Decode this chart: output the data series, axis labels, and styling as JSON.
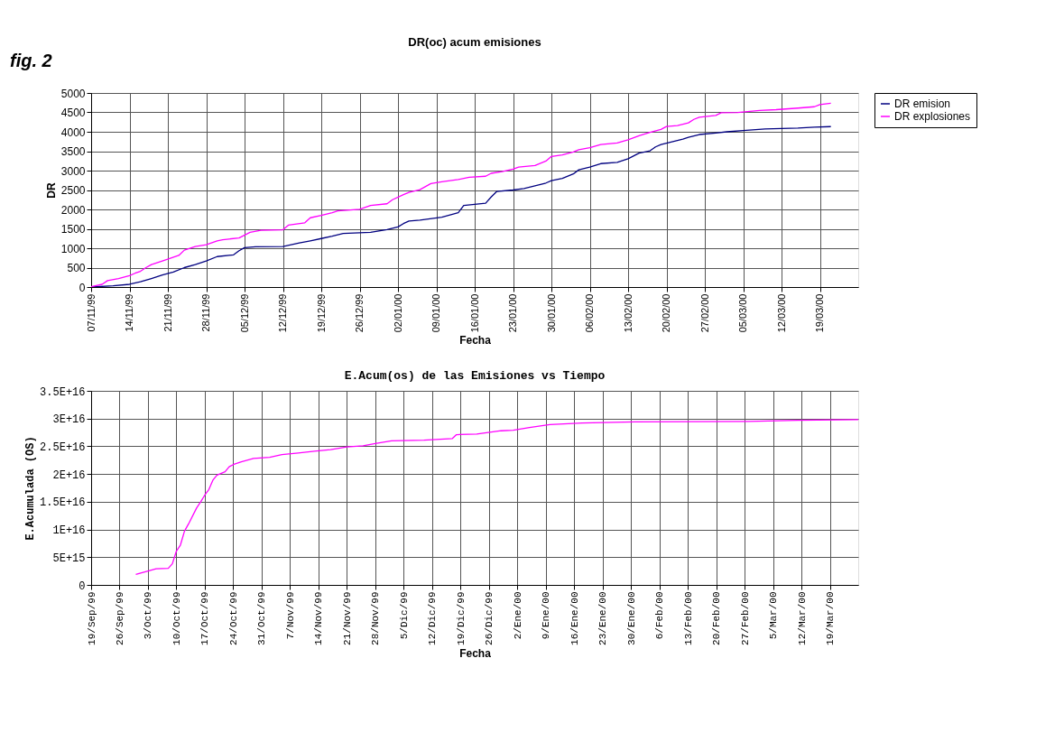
{
  "chart_data": [
    {
      "type": "line",
      "title": "DR(oc) acum emisiones",
      "xlabel": "Fecha",
      "ylabel": "DR",
      "annotations": [
        "fig. 2"
      ],
      "legend": "right",
      "grid": true,
      "xlim": [
        "1999-11-07",
        "2000-03-26"
      ],
      "xticks": [
        {
          "value": "1999-11-07",
          "label": "07/11/99"
        },
        {
          "value": "1999-11-14",
          "label": "14/11/99"
        },
        {
          "value": "1999-11-21",
          "label": "21/11/99"
        },
        {
          "value": "1999-11-28",
          "label": "28/11/99"
        },
        {
          "value": "1999-12-05",
          "label": "05/12/99"
        },
        {
          "value": "1999-12-12",
          "label": "12/12/99"
        },
        {
          "value": "1999-12-19",
          "label": "19/12/99"
        },
        {
          "value": "1999-12-26",
          "label": "26/12/99"
        },
        {
          "value": "2000-01-02",
          "label": "02/01/00"
        },
        {
          "value": "2000-01-09",
          "label": "09/01/00"
        },
        {
          "value": "2000-01-16",
          "label": "16/01/00"
        },
        {
          "value": "2000-01-23",
          "label": "23/01/00"
        },
        {
          "value": "2000-01-30",
          "label": "30/01/00"
        },
        {
          "value": "2000-02-06",
          "label": "06/02/00"
        },
        {
          "value": "2000-02-13",
          "label": "13/02/00"
        },
        {
          "value": "2000-02-20",
          "label": "20/02/00"
        },
        {
          "value": "2000-02-27",
          "label": "27/02/00"
        },
        {
          "value": "2000-03-05",
          "label": "05/03/00"
        },
        {
          "value": "2000-03-12",
          "label": "12/03/00"
        },
        {
          "value": "2000-03-19",
          "label": "19/03/00"
        }
      ],
      "ylim": [
        0,
        5000
      ],
      "yticks": [
        0,
        500,
        1000,
        1500,
        2000,
        2500,
        3000,
        3500,
        4000,
        4500,
        5000
      ],
      "series": [
        {
          "name": "DR emision",
          "color": "#000080",
          "x": [
            "1999-11-07",
            "1999-11-11",
            "1999-11-14",
            "1999-11-16",
            "1999-11-18",
            "1999-11-20",
            "1999-11-22",
            "1999-11-24",
            "1999-11-26",
            "1999-11-28",
            "1999-11-30",
            "1999-12-03",
            "1999-12-04",
            "1999-12-05",
            "1999-12-07",
            "1999-12-12",
            "1999-12-15",
            "1999-12-17",
            "1999-12-19",
            "1999-12-21",
            "1999-12-23",
            "1999-12-28",
            "1999-12-31",
            "2000-01-02",
            "2000-01-03",
            "2000-01-04",
            "2000-01-06",
            "2000-01-10",
            "2000-01-13",
            "2000-01-14",
            "2000-01-18",
            "2000-01-19",
            "2000-01-20",
            "2000-01-23",
            "2000-01-25",
            "2000-01-27",
            "2000-01-29",
            "2000-01-30",
            "2000-02-01",
            "2000-02-03",
            "2000-02-04",
            "2000-02-06",
            "2000-02-08",
            "2000-02-11",
            "2000-02-13",
            "2000-02-15",
            "2000-02-17",
            "2000-02-18",
            "2000-02-19",
            "2000-02-21",
            "2000-02-23",
            "2000-02-24",
            "2000-02-26",
            "2000-02-29",
            "2000-03-02",
            "2000-03-05",
            "2000-03-09",
            "2000-03-15",
            "2000-03-18",
            "2000-03-21"
          ],
          "values": [
            0,
            30,
            70,
            135,
            220,
            310,
            385,
            500,
            580,
            670,
            785,
            830,
            935,
            1015,
            1040,
            1045,
            1135,
            1190,
            1250,
            1310,
            1380,
            1410,
            1480,
            1550,
            1635,
            1700,
            1725,
            1800,
            1915,
            2100,
            2160,
            2320,
            2460,
            2500,
            2540,
            2610,
            2680,
            2740,
            2800,
            2915,
            3020,
            3090,
            3180,
            3210,
            3305,
            3450,
            3510,
            3610,
            3670,
            3740,
            3810,
            3855,
            3930,
            3970,
            4000,
            4030,
            4075,
            4095,
            4120,
            4134
          ]
        },
        {
          "name": "DR explosiones",
          "color": "#ff00ff",
          "x": [
            "1999-11-07",
            "1999-11-09",
            "1999-11-10",
            "1999-11-12",
            "1999-11-14",
            "1999-11-15",
            "1999-11-16",
            "1999-11-17",
            "1999-11-18",
            "1999-11-20",
            "1999-11-23",
            "1999-11-24",
            "1999-11-26",
            "1999-11-28",
            "1999-11-30",
            "1999-12-01",
            "1999-12-04",
            "1999-12-06",
            "1999-12-08",
            "1999-12-12",
            "1999-12-13",
            "1999-12-16",
            "1999-12-17",
            "1999-12-19",
            "1999-12-21",
            "1999-12-22",
            "1999-12-26",
            "1999-12-28",
            "1999-12-31",
            "2000-01-01",
            "2000-01-03",
            "2000-01-04",
            "2000-01-06",
            "2000-01-08",
            "2000-01-10",
            "2000-01-13",
            "2000-01-15",
            "2000-01-18",
            "2000-01-19",
            "2000-01-21",
            "2000-01-23",
            "2000-01-24",
            "2000-01-27",
            "2000-01-29",
            "2000-01-30",
            "2000-02-01",
            "2000-02-03",
            "2000-02-04",
            "2000-02-06",
            "2000-02-08",
            "2000-02-11",
            "2000-02-13",
            "2000-02-15",
            "2000-02-17",
            "2000-02-19",
            "2000-02-20",
            "2000-02-22",
            "2000-02-24",
            "2000-02-25",
            "2000-02-26",
            "2000-02-29",
            "2000-03-01",
            "2000-03-04",
            "2000-03-08",
            "2000-03-11",
            "2000-03-15",
            "2000-03-18",
            "2000-03-19",
            "2000-03-21"
          ],
          "values": [
            10,
            70,
            165,
            220,
            295,
            355,
            405,
            500,
            580,
            670,
            815,
            950,
            1045,
            1090,
            1190,
            1220,
            1265,
            1410,
            1460,
            1475,
            1595,
            1655,
            1785,
            1845,
            1915,
            1960,
            2005,
            2100,
            2145,
            2250,
            2380,
            2440,
            2510,
            2665,
            2710,
            2770,
            2830,
            2855,
            2930,
            2975,
            3040,
            3090,
            3130,
            3245,
            3365,
            3405,
            3480,
            3540,
            3590,
            3670,
            3710,
            3795,
            3900,
            3985,
            4060,
            4135,
            4160,
            4230,
            4320,
            4375,
            4420,
            4490,
            4495,
            4550,
            4570,
            4610,
            4645,
            4700,
            4735
          ]
        }
      ]
    },
    {
      "type": "line",
      "title": "E.Acum(os) de las Emisiones vs Tiempo",
      "xlabel": "Fecha",
      "ylabel": "E.Acumulada (OS)",
      "legend": false,
      "grid": true,
      "xlim": [
        "1999-09-19",
        "2000-03-26"
      ],
      "xticks": [
        {
          "value": "1999-09-19",
          "label": "19/Sep/99"
        },
        {
          "value": "1999-09-26",
          "label": "26/Sep/99"
        },
        {
          "value": "1999-10-03",
          "label": "3/Oct/99"
        },
        {
          "value": "1999-10-10",
          "label": "10/Oct/99"
        },
        {
          "value": "1999-10-17",
          "label": "17/Oct/99"
        },
        {
          "value": "1999-10-24",
          "label": "24/Oct/99"
        },
        {
          "value": "1999-10-31",
          "label": "31/Oct/99"
        },
        {
          "value": "1999-11-07",
          "label": "7/Nov/99"
        },
        {
          "value": "1999-11-14",
          "label": "14/Nov/99"
        },
        {
          "value": "1999-11-21",
          "label": "21/Nov/99"
        },
        {
          "value": "1999-11-28",
          "label": "28/Nov/99"
        },
        {
          "value": "1999-12-05",
          "label": "5/Dic/99"
        },
        {
          "value": "1999-12-12",
          "label": "12/Dic/99"
        },
        {
          "value": "1999-12-19",
          "label": "19/Dic/99"
        },
        {
          "value": "1999-12-26",
          "label": "26/Dic/99"
        },
        {
          "value": "2000-01-02",
          "label": "2/Ene/00"
        },
        {
          "value": "2000-01-09",
          "label": "9/Ene/00"
        },
        {
          "value": "2000-01-16",
          "label": "16/Ene/00"
        },
        {
          "value": "2000-01-23",
          "label": "23/Ene/00"
        },
        {
          "value": "2000-01-30",
          "label": "30/Ene/00"
        },
        {
          "value": "2000-02-06",
          "label": "6/Feb/00"
        },
        {
          "value": "2000-02-13",
          "label": "13/Feb/00"
        },
        {
          "value": "2000-02-20",
          "label": "20/Feb/00"
        },
        {
          "value": "2000-02-27",
          "label": "27/Feb/00"
        },
        {
          "value": "2000-03-05",
          "label": "5/Mar/00"
        },
        {
          "value": "2000-03-12",
          "label": "12/Mar/00"
        },
        {
          "value": "2000-03-19",
          "label": "19/Mar/00"
        }
      ],
      "ylim": [
        0,
        3.5e+16
      ],
      "yticks": [
        0,
        {
          "value": 5000000000000000.0,
          "label": "5E+15"
        },
        {
          "value": 1e+16,
          "label": "1E+16"
        },
        {
          "value": 1.5e+16,
          "label": "1.5E+16"
        },
        {
          "value": 2e+16,
          "label": "2E+16"
        },
        {
          "value": 2.5e+16,
          "label": "2.5E+16"
        },
        {
          "value": 3e+16,
          "label": "3E+16"
        },
        {
          "value": 3.5e+16,
          "label": "3.5E+16"
        }
      ],
      "series": [
        {
          "color": "#ff00ff",
          "x": [
            "1999-09-30",
            "1999-10-05",
            "1999-10-08",
            "1999-10-09",
            "1999-10-10",
            "1999-10-11",
            "1999-10-12",
            "1999-10-13",
            "1999-10-15",
            "1999-10-16",
            "1999-10-17",
            "1999-10-18",
            "1999-10-19",
            "1999-10-20",
            "1999-10-22",
            "1999-10-23",
            "1999-10-24",
            "1999-10-26",
            "1999-10-29",
            "1999-11-02",
            "1999-11-05",
            "1999-11-09",
            "1999-11-13",
            "1999-11-17",
            "1999-11-21",
            "1999-11-25",
            "1999-11-28",
            "1999-12-02",
            "1999-12-10",
            "1999-12-17",
            "1999-12-18",
            "1999-12-23",
            "1999-12-29",
            "2000-01-01",
            "2000-01-05",
            "2000-01-10",
            "2000-01-18",
            "2000-01-31",
            "2000-02-28",
            "2000-03-11",
            "2000-03-26"
          ],
          "values": [
            1900000000000000.0,
            2900000000000000.0,
            3000000000000000.0,
            3800000000000000.0,
            6100000000000000.0,
            7200000000000000.0,
            9700000000000000.0,
            1.1e+16,
            1.39e+16,
            1.5e+16,
            1.62e+16,
            1.72e+16,
            1.89e+16,
            1.98e+16,
            2.04e+16,
            2.13e+16,
            2.17e+16,
            2.22e+16,
            2.28e+16,
            2.3e+16,
            2.35e+16,
            2.38e+16,
            2.41e+16,
            2.44e+16,
            2.49e+16,
            2.51e+16,
            2.55e+16,
            2.6e+16,
            2.61e+16,
            2.64e+16,
            2.71e+16,
            2.72e+16,
            2.78e+16,
            2.79e+16,
            2.84e+16,
            2.89e+16,
            2.92e+16,
            2.94e+16,
            2.95e+16,
            2.97e+16,
            2.98e+16
          ]
        }
      ]
    }
  ]
}
